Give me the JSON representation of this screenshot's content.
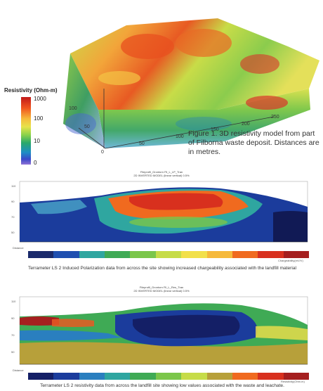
{
  "figure1": {
    "legend_title": "Resistivity (Ohm-m)",
    "legend_ticks": [
      "1000",
      "100",
      "10",
      "0"
    ],
    "axis_labels": [
      "100",
      "50",
      "0",
      "50",
      "100",
      "150",
      "200",
      "250"
    ],
    "caption": "Figure 1. 3D resistivity model from part of Filborna waste deposit. Distances are in metres."
  },
  "profile1": {
    "title_line1": "Fileprofil_Grontorn Fil_L_LP_Tran",
    "title_line2": "2D INVERTED MODEL (linear vertical) 0.5%",
    "caption": "Terrameter LS 2 Induced Polarization data from across the site showing increased chargeability associated with the landfill material",
    "scale_label": "Chargeability(mV/V)",
    "depth_label": "Distance"
  },
  "profile2": {
    "title_line1": "Fileprofil_Grontorn Fil_L_Res_Tran",
    "title_line2": "2D INVERTED MODEL (linear vertical) 0.5%",
    "caption": "Terrameter LS 2 resistivity data from across the landfill site showing low values associated with the waste and leachate.",
    "scale_label": "Resistivity(Ohm.m)",
    "depth_label": "Distance"
  },
  "colors": {
    "dark_red": "#a51f1f",
    "orange": "#f0541e",
    "yellow": "#f2e04a",
    "green": "#55b848",
    "blue": "#1f4fb0",
    "navy": "#1a2a6b"
  }
}
